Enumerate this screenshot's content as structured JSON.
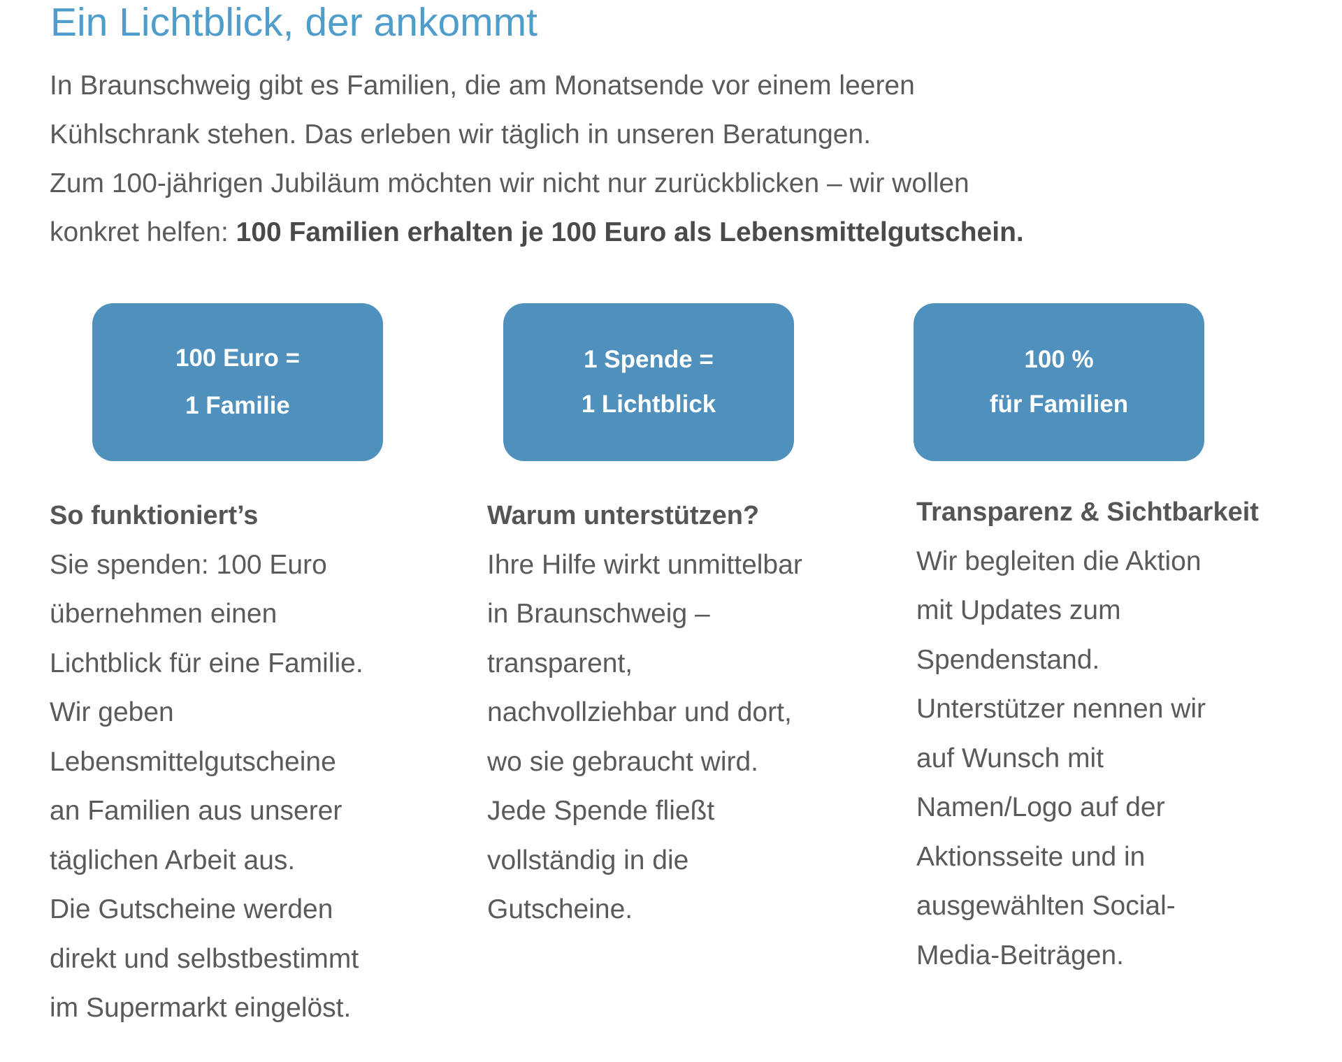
{
  "title": "Ein Lichtblick, der ankommt",
  "intro": {
    "lines": [
      "In Braunschweig gibt es Familien, die am Monatsende vor einem leeren",
      "Kühlschrank stehen. Das erleben wir täglich in unseren Beratungen.",
      "Zum 100-jährigen Jubiläum möchten wir nicht nur zurückblicken – wir wollen"
    ],
    "last_prefix": "konkret helfen: ",
    "last_bold": "100 Familien erhalten je 100 Euro als Lebensmittelgutschein."
  },
  "colors": {
    "title": "#4e9dca",
    "box": "#5090bd",
    "text": "#5a5a5a"
  },
  "boxes": [
    {
      "line1": "100 Euro =",
      "line2": "1 Familie"
    },
    {
      "line1": "1 Spende =",
      "line2": "1 Lichtblick"
    },
    {
      "line1": "100 %",
      "line2": "für Familien"
    }
  ],
  "columns": [
    {
      "heading": "So funktioniert’s",
      "lines": [
        "Sie spenden: 100 Euro",
        "übernehmen einen",
        "Lichtblick für eine Familie.",
        "Wir geben",
        "Lebensmittelgutscheine",
        "an Familien aus unserer",
        "täglichen Arbeit aus.",
        "Die Gutscheine werden",
        "direkt und selbstbestimmt",
        "im Supermarkt eingelöst."
      ]
    },
    {
      "heading": "Warum unterstützen?",
      "lines": [
        "Ihre Hilfe wirkt unmittelbar",
        "in Braunschweig –",
        "transparent,",
        "nachvollziehbar und dort,",
        "wo sie gebraucht wird.",
        "Jede Spende fließt",
        "vollständig in die",
        "Gutscheine."
      ]
    },
    {
      "heading": "Transparenz & Sichtbarkeit",
      "lines": [
        "Wir begleiten die Aktion",
        "mit Updates zum",
        "Spendenstand.",
        "Unterstützer nennen wir",
        "auf Wunsch mit",
        "Namen/Logo auf der",
        "Aktionsseite und in",
        "ausgewählten Social-",
        "Media-Beiträgen."
      ]
    }
  ]
}
